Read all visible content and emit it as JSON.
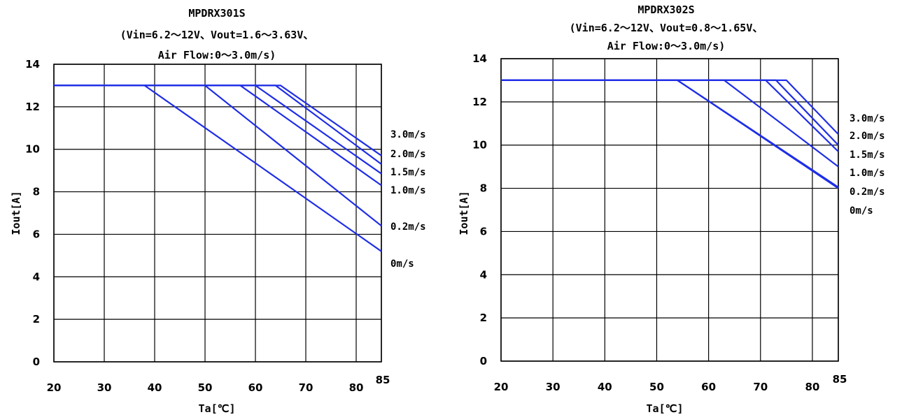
{
  "chart_data": [
    {
      "type": "line",
      "title": "MPDRX301S",
      "subtitle": [
        "(Vin=6.2～12V、Vout=1.6～3.63V、",
        "Air Flow:0～3.0m/s)"
      ],
      "xlabel": "Ta[℃]",
      "ylabel": "Iout[A]",
      "xlim": [
        20,
        85
      ],
      "ylim": [
        0,
        14
      ],
      "xticks": [
        "20",
        "30",
        "40",
        "50",
        "60",
        "70",
        "80",
        "85"
      ],
      "yticks": [
        "0",
        "2",
        "4",
        "6",
        "8",
        "10",
        "12",
        "14"
      ],
      "grid": true,
      "line_color": "#1f2ee6",
      "series": [
        {
          "name": "3.0m/s",
          "points": [
            [
              20,
              13
            ],
            [
              65,
              13
            ],
            [
              85,
              9.7
            ]
          ]
        },
        {
          "name": "2.0m/s",
          "points": [
            [
              20,
              13
            ],
            [
              64,
              13
            ],
            [
              85,
              9.3
            ]
          ]
        },
        {
          "name": "1.5m/s",
          "points": [
            [
              20,
              13
            ],
            [
              60,
              13
            ],
            [
              85,
              8.85
            ]
          ]
        },
        {
          "name": "1.0m/s",
          "points": [
            [
              20,
              13
            ],
            [
              57,
              13
            ],
            [
              85,
              8.3
            ]
          ]
        },
        {
          "name": "0.2m/s",
          "points": [
            [
              20,
              13
            ],
            [
              50,
              13
            ],
            [
              85,
              6.4
            ]
          ]
        },
        {
          "name": "0m/s",
          "points": [
            [
              20,
              13
            ],
            [
              38,
              13
            ],
            [
              85,
              5.2
            ]
          ]
        }
      ]
    },
    {
      "type": "line",
      "title": "MPDRX302S",
      "subtitle": [
        "(Vin=6.2～12V、Vout=0.8～1.65V、",
        "Air Flow:0～3.0m/s)"
      ],
      "xlabel": "Ta[℃]",
      "ylabel": "Iout[A]",
      "xlim": [
        20,
        85
      ],
      "ylim": [
        0,
        14
      ],
      "xticks": [
        "20",
        "30",
        "40",
        "50",
        "60",
        "70",
        "80",
        "85"
      ],
      "yticks": [
        "0",
        "2",
        "4",
        "6",
        "8",
        "10",
        "12",
        "14"
      ],
      "grid": true,
      "line_color": "#1f2ee6",
      "series": [
        {
          "name": "3.0m/s",
          "points": [
            [
              20,
              13
            ],
            [
              75,
              13
            ],
            [
              85,
              10.5
            ]
          ]
        },
        {
          "name": "2.0m/s",
          "points": [
            [
              20,
              13
            ],
            [
              73,
              13
            ],
            [
              85,
              10.0
            ]
          ]
        },
        {
          "name": "1.5m/s",
          "points": [
            [
              20,
              13
            ],
            [
              71,
              13
            ],
            [
              85,
              9.7
            ]
          ]
        },
        {
          "name": "1.0m/s",
          "points": [
            [
              20,
              13
            ],
            [
              63,
              13
            ],
            [
              85,
              9.0
            ]
          ]
        },
        {
          "name": "0.2m/s",
          "points": [
            [
              20,
              13
            ],
            [
              54,
              13
            ],
            [
              85,
              8.05
            ]
          ]
        },
        {
          "name": "0m/s",
          "points": [
            [
              20,
              13
            ],
            [
              54,
              13
            ],
            [
              85,
              8.0
            ]
          ]
        }
      ]
    }
  ]
}
